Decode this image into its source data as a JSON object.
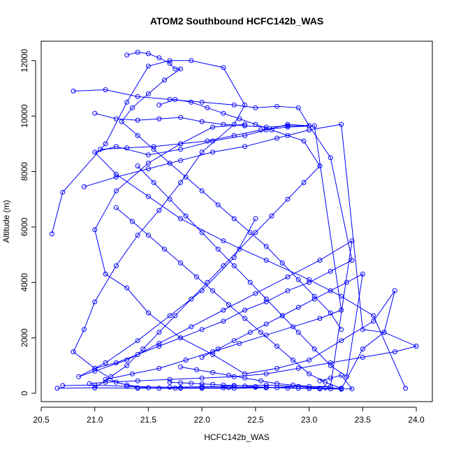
{
  "chart_data": {
    "type": "line",
    "title": "ATOM2 Southbound HCFC142b_WAS",
    "xlabel": "HCFC142b_WAS",
    "ylabel": "Altitude (m)",
    "xlim": [
      20.5,
      24.15
    ],
    "ylim": [
      -300,
      12700
    ],
    "x_ticks": [
      20.5,
      21.0,
      21.5,
      22.0,
      22.5,
      23.0,
      23.5,
      24.0
    ],
    "x_tick_labels": [
      "20.5",
      "21.0",
      "21.5",
      "22.0",
      "22.5",
      "23.0",
      "23.5",
      "24.0"
    ],
    "y_ticks": [
      0,
      2000,
      4000,
      6000,
      8000,
      10000,
      12000
    ],
    "y_tick_labels": [
      "0",
      "2000",
      "4000",
      "6000",
      "8000",
      "10000",
      "12000"
    ],
    "grid": false,
    "legend": "none",
    "marker": "open-circle",
    "series_color": "#0000ff",
    "series": [
      {
        "x": [
          20.6,
          20.7,
          21.1,
          21.3,
          21.5,
          21.7,
          21.9,
          22.2,
          22.4,
          22.3,
          22.0,
          21.8,
          21.6,
          21.4,
          21.2,
          21.0,
          20.9,
          20.8,
          21.0,
          21.2,
          21.4,
          21.6,
          21.8,
          22.0,
          22.3,
          22.6,
          22.9,
          23.1
        ],
        "y": [
          5750,
          7250,
          9000,
          10500,
          11800,
          12000,
          12000,
          11750,
          10400,
          9700,
          8700,
          7600,
          6600,
          5700,
          4600,
          3300,
          2300,
          1500,
          900,
          400,
          200,
          180,
          180,
          180,
          180,
          200,
          250,
          180
        ]
      },
      {
        "x": [
          20.65,
          21.0,
          21.4,
          21.8,
          22.2,
          22.6,
          23.0,
          23.3,
          23.5,
          23.7,
          23.8,
          23.6,
          23.3,
          23.0,
          22.7,
          22.4,
          22.1,
          21.8,
          21.5,
          21.3,
          21.1,
          21.0,
          21.2,
          21.5,
          21.8,
          22.1,
          22.4
        ],
        "y": [
          180,
          200,
          180,
          200,
          200,
          220,
          180,
          150,
          1600,
          2200,
          3700,
          2600,
          1900,
          1200,
          900,
          700,
          1400,
          2000,
          2900,
          3800,
          4300,
          5900,
          7300,
          8300,
          9000,
          9600,
          9700
        ]
      },
      {
        "x": [
          20.7,
          21.0,
          21.3,
          21.7,
          22.0,
          22.3,
          22.6,
          22.9,
          23.2,
          23.4,
          23.1,
          22.8,
          22.5,
          22.2,
          21.9,
          21.6,
          21.3,
          21.0,
          20.85,
          21.1,
          21.4,
          21.7,
          22.0,
          22.3,
          22.5
        ],
        "y": [
          280,
          300,
          250,
          220,
          240,
          260,
          300,
          250,
          240,
          5500,
          4800,
          4200,
          3600,
          3000,
          2400,
          1800,
          1200,
          800,
          600,
          1100,
          1900,
          2800,
          3700,
          4900,
          6300
        ]
      },
      {
        "x": [
          20.8,
          21.1,
          21.4,
          21.7,
          22.0,
          22.3,
          22.5,
          22.7,
          22.9,
          23.0,
          22.8,
          22.6,
          22.4,
          22.1,
          21.8,
          21.5,
          21.2,
          21.0,
          21.2,
          21.5,
          21.8,
          22.2,
          22.6,
          23.0,
          23.3,
          23.6,
          23.9
        ],
        "y": [
          10900,
          10950,
          10700,
          10600,
          10500,
          10400,
          10300,
          10350,
          10300,
          9650,
          9700,
          9500,
          9300,
          9100,
          8800,
          8600,
          8900,
          8700,
          7900,
          7100,
          6300,
          5500,
          4800,
          4100,
          3500,
          2800,
          180
        ]
      },
      {
        "x": [
          20.9,
          21.2,
          21.5,
          21.8,
          22.1,
          22.4,
          22.7,
          23.0,
          23.3,
          23.5,
          23.7,
          24.0,
          23.8,
          23.5,
          23.2,
          22.9,
          22.6,
          22.3,
          22.0,
          21.7,
          21.4,
          21.1,
          20.95
        ],
        "y": [
          7450,
          7800,
          8100,
          8400,
          8700,
          8900,
          9200,
          9500,
          9700,
          2300,
          2200,
          1700,
          1500,
          1300,
          1100,
          900,
          700,
          600,
          550,
          500,
          450,
          400,
          350
        ]
      },
      {
        "x": [
          21.0,
          21.2,
          21.4,
          21.6,
          21.8,
          22.0,
          22.2,
          22.4,
          22.6,
          22.8,
          23.0,
          23.2,
          23.4,
          23.2,
          23.0,
          22.8,
          22.6,
          22.4,
          22.2,
          22.0,
          21.8,
          21.6,
          21.4,
          21.2,
          21.0
        ],
        "y": [
          10100,
          9900,
          9850,
          9900,
          9950,
          9800,
          9700,
          9650,
          9600,
          9650,
          9650,
          8500,
          4800,
          4400,
          4000,
          3700,
          3300,
          3000,
          2600,
          2300,
          2000,
          1700,
          1400,
          1100,
          900
        ]
      },
      {
        "x": [
          21.05,
          21.3,
          21.55,
          21.8,
          22.05,
          22.3,
          22.55,
          22.8,
          23.05,
          23.3,
          23.1,
          22.85,
          22.6,
          22.35,
          22.1,
          21.85,
          21.6,
          21.35,
          21.1,
          21.3,
          21.5,
          21.75,
          22.0,
          22.25,
          22.5
        ],
        "y": [
          8800,
          8850,
          8900,
          9000,
          9100,
          9300,
          9500,
          9600,
          9650,
          3000,
          2700,
          2400,
          2100,
          1800,
          1500,
          1200,
          900,
          700,
          500,
          300,
          200,
          190,
          200,
          210,
          220
        ]
      },
      {
        "x": [
          21.3,
          21.4,
          21.5,
          21.6,
          21.7,
          21.75,
          21.8,
          21.65,
          21.5,
          21.35,
          21.25,
          21.4,
          21.55,
          21.7,
          21.85,
          22.0,
          22.15,
          22.3,
          22.45,
          22.6,
          22.75,
          22.9,
          23.05,
          23.2,
          23.3
        ],
        "y": [
          12200,
          12300,
          12250,
          12100,
          11900,
          11700,
          11700,
          11300,
          10800,
          10300,
          9800,
          9300,
          8800,
          8300,
          7800,
          7300,
          6800,
          6300,
          5800,
          5300,
          4700,
          4100,
          3500,
          2900,
          2300
        ]
      },
      {
        "x": [
          21.2,
          21.35,
          21.5,
          21.65,
          21.8,
          21.95,
          22.1,
          22.25,
          22.4,
          22.55,
          22.7,
          22.85,
          23.0,
          23.15,
          23.3,
          23.15,
          23.0,
          22.85,
          22.7,
          22.55,
          22.4,
          22.25,
          22.1,
          21.95,
          21.8
        ],
        "y": [
          6700,
          6200,
          5700,
          5200,
          4700,
          4200,
          3700,
          3200,
          2700,
          2200,
          1700,
          1200,
          700,
          400,
          180,
          200,
          250,
          300,
          350,
          450,
          550,
          650,
          750,
          850,
          950
        ]
      },
      {
        "x": [
          21.4,
          21.55,
          21.7,
          21.85,
          22.0,
          22.15,
          22.3,
          22.45,
          22.6,
          22.75,
          22.9,
          23.05,
          23.2,
          23.35,
          23.5,
          23.35,
          23.2,
          23.05,
          22.9,
          22.75,
          22.6,
          22.45,
          22.3,
          22.15,
          22.0
        ],
        "y": [
          8200,
          7600,
          7000,
          6400,
          5800,
          5200,
          4600,
          4000,
          3400,
          2800,
          2200,
          1600,
          1000,
          600,
          4300,
          4000,
          3700,
          3400,
          3100,
          2800,
          2500,
          2200,
          1900,
          1600,
          1300
        ]
      },
      {
        "x": [
          21.6,
          21.75,
          21.9,
          22.05,
          22.2,
          22.35,
          22.5,
          22.65,
          22.8,
          22.95,
          23.1,
          22.95,
          22.8,
          22.65,
          22.5,
          22.35,
          22.2,
          22.05,
          21.9,
          21.75,
          21.6,
          21.45,
          21.3,
          21.15,
          21.0
        ],
        "y": [
          10400,
          10600,
          10500,
          10300,
          10100,
          9900,
          9700,
          9500,
          9300,
          9100,
          8200,
          7600,
          7000,
          6400,
          5800,
          5200,
          4600,
          4000,
          3400,
          2800,
          2200,
          1600,
          1000,
          600,
          200
        ]
      },
      {
        "x": [
          21.7,
          21.8,
          21.9,
          22.0,
          22.1,
          22.2,
          22.3,
          22.4,
          22.5,
          22.6,
          22.7,
          22.8,
          22.9,
          23.0,
          23.1,
          23.2,
          23.3,
          23.4,
          23.3,
          23.2,
          23.1
        ],
        "y": [
          400,
          380,
          360,
          340,
          320,
          300,
          280,
          260,
          240,
          220,
          200,
          190,
          180,
          170,
          160,
          160,
          160,
          160,
          650,
          550,
          450
        ]
      }
    ]
  }
}
